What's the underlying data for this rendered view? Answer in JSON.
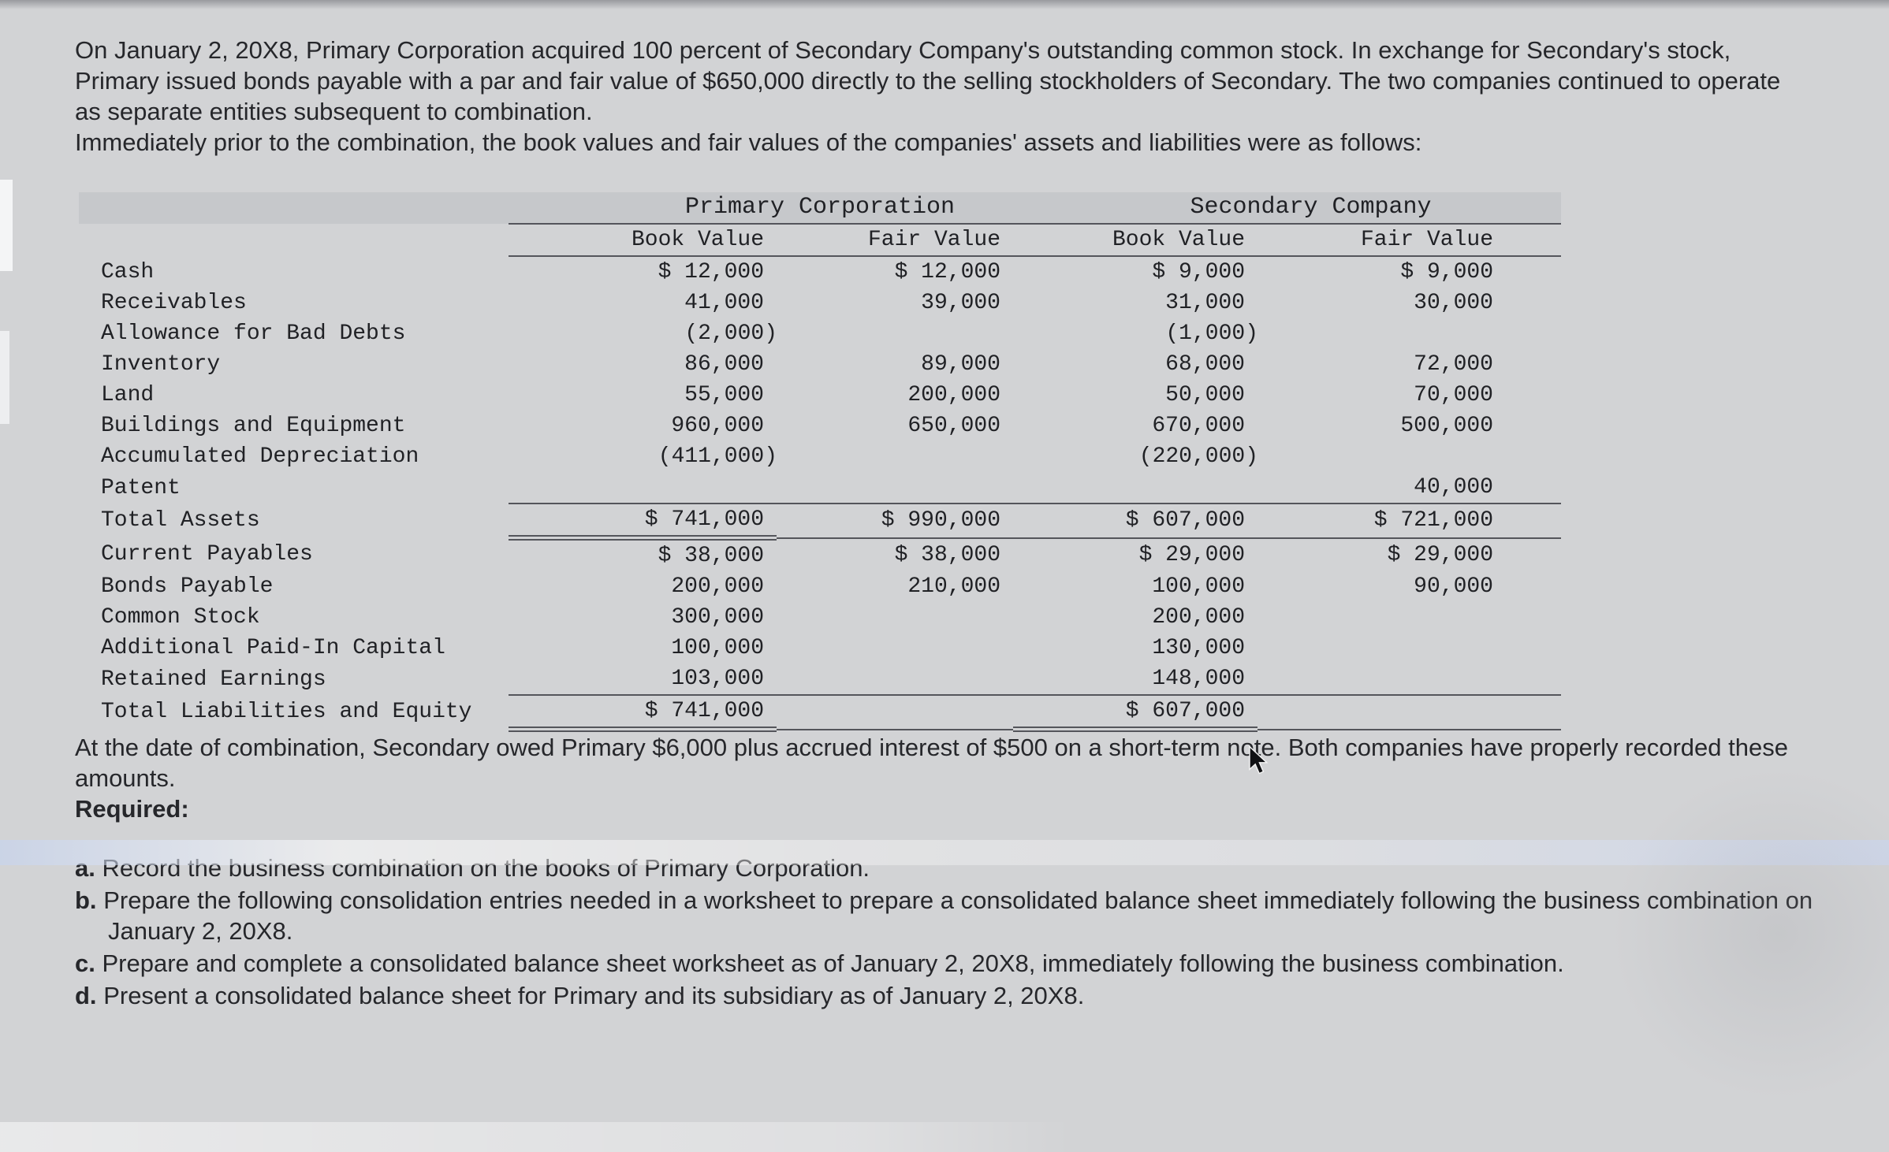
{
  "page": {
    "intro": "On January 2, 20X8, Primary Corporation acquired 100 percent of Secondary Company's outstanding common stock. In exchange for Secondary's stock, Primary issued bonds payable with a par and fair value of $650,000 directly to the selling stockholders of Secondary. The two companies continued to operate as separate entities subsequent to combination.",
    "table_intro": "Immediately prior to the combination, the book values and fair values of the companies' assets and liabilities were as follows:",
    "note": "At the date of combination, Secondary owed Primary $6,000 plus accrued interest of $500 on a short-term note. Both companies have properly recorded these amounts."
  },
  "table": {
    "groups": {
      "primary": "Primary Corporation",
      "secondary": "Secondary Company"
    },
    "subheaders": [
      "Book Value",
      "Fair Value",
      "Book Value",
      "Fair Value"
    ],
    "rows": [
      {
        "label": "Cash",
        "pbv": "$ 12,000",
        "pfv": "$ 12,000",
        "sbv": "$ 9,000",
        "sfv": "$ 9,000"
      },
      {
        "label": "Receivables",
        "pbv": "41,000",
        "pfv": "39,000",
        "sbv": "31,000",
        "sfv": "30,000"
      },
      {
        "label": "Allowance for Bad Debts",
        "pbv": "(2,000)",
        "pfv": "",
        "sbv": "(1,000)",
        "sfv": ""
      },
      {
        "label": "Inventory",
        "pbv": "86,000",
        "pfv": "89,000",
        "sbv": "68,000",
        "sfv": "72,000"
      },
      {
        "label": "Land",
        "pbv": "55,000",
        "pfv": "200,000",
        "sbv": "50,000",
        "sfv": "70,000"
      },
      {
        "label": "Buildings and Equipment",
        "pbv": "960,000",
        "pfv": "650,000",
        "sbv": "670,000",
        "sfv": "500,000"
      },
      {
        "label": "Accumulated Depreciation",
        "pbv": "(411,000)",
        "pfv": "",
        "sbv": "(220,000)",
        "sfv": ""
      },
      {
        "label": "Patent",
        "pbv": "",
        "pfv": "",
        "sbv": "",
        "sfv": "40,000"
      },
      {
        "label": "Total Assets",
        "pbv": "$ 741,000",
        "pfv": "$ 990,000",
        "sbv": "$ 607,000",
        "sfv": "$ 721,000",
        "total": "assets"
      },
      {
        "label": "Current Payables",
        "pbv": "$ 38,000",
        "pfv": "$ 38,000",
        "sbv": "$ 29,000",
        "sfv": "$ 29,000"
      },
      {
        "label": "Bonds Payable",
        "pbv": "200,000",
        "pfv": "210,000",
        "sbv": "100,000",
        "sfv": "90,000"
      },
      {
        "label": "Common Stock",
        "pbv": "300,000",
        "pfv": "",
        "sbv": "200,000",
        "sfv": ""
      },
      {
        "label": "Additional Paid-In Capital",
        "pbv": "100,000",
        "pfv": "",
        "sbv": "130,000",
        "sfv": ""
      },
      {
        "label": "Retained Earnings",
        "pbv": "103,000",
        "pfv": "",
        "sbv": "148,000",
        "sfv": ""
      },
      {
        "label": "Total Liabilities and Equity",
        "pbv": "$ 741,000",
        "pfv": "",
        "sbv": "$ 607,000",
        "sfv": "",
        "total": "liabilities"
      }
    ]
  },
  "required": {
    "heading": "Required:",
    "items": [
      {
        "letter": "a.",
        "text": "Record the business combination on the books of Primary Corporation."
      },
      {
        "letter": "b.",
        "text": "Prepare the following consolidation entries needed in a worksheet to prepare a consolidated balance sheet immediately following the business combination on January 2, 20X8."
      },
      {
        "letter": "c.",
        "text": "Prepare and complete a consolidated balance sheet worksheet as of January 2, 20X8, immediately following the business combination."
      },
      {
        "letter": "d.",
        "text": "Present a consolidated balance sheet for Primary and its subsidiary as of January 2, 20X8."
      }
    ]
  }
}
